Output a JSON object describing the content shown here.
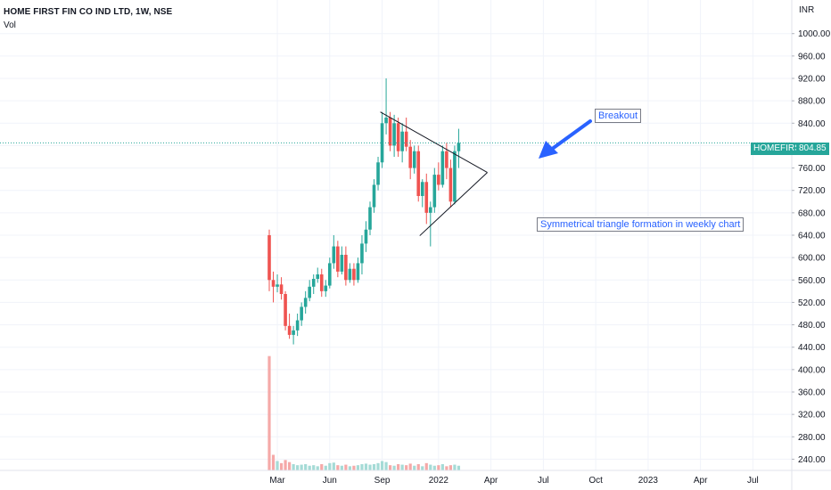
{
  "legend": {
    "symbol": "HOME FIRST FIN CO IND LTD, 1W, NSE",
    "volume": "Vol"
  },
  "currency": "INR",
  "last_price": {
    "symbol": "HOMEFIRST",
    "value": "804.85",
    "value_num": 804.85
  },
  "annotations": {
    "breakout": "Breakout",
    "triangle": "Symmetrical triangle formation in weekly chart"
  },
  "colors": {
    "up": "#26a69a",
    "down": "#ef5350",
    "up_vol": "#a5dbd6",
    "down_vol": "#f5a9a8",
    "line": "#131722",
    "arrow": "#2962ff",
    "grid": "#f0f3fa",
    "axis_text": "#131722"
  },
  "chart_data": {
    "type": "candlestick",
    "title": "HOME FIRST FIN CO IND LTD, 1W, NSE",
    "ylim": [
      220,
      1060
    ],
    "y_ticks": [
      240,
      280,
      320,
      360,
      400,
      440,
      480,
      520,
      560,
      600,
      640,
      680,
      720,
      760,
      800,
      840,
      880,
      920,
      960,
      1000
    ],
    "y_tick_labels": [
      "240.00",
      "280.00",
      "320.00",
      "360.00",
      "400.00",
      "440.00",
      "480.00",
      "520.00",
      "560.00",
      "600.00",
      "640.00",
      "680.00",
      "720.00",
      "760.00",
      "800.00",
      "840.00",
      "880.00",
      "920.00",
      "960.00",
      "1000.00"
    ],
    "x_ticks": [
      "Mar",
      "Jun",
      "Sep",
      "2022",
      "Apr",
      "Jul",
      "Oct",
      "2023",
      "Apr",
      "Jul"
    ],
    "x_tick_weeks": [
      2,
      15,
      28,
      42,
      55,
      68,
      81,
      94,
      107,
      120
    ],
    "candles": [
      [
        640,
        650,
        540,
        560
      ],
      [
        560,
        575,
        520,
        548
      ],
      [
        548,
        570,
        538,
        552
      ],
      [
        552,
        565,
        525,
        535
      ],
      [
        535,
        540,
        470,
        478
      ],
      [
        478,
        500,
        455,
        462
      ],
      [
        462,
        478,
        445,
        470
      ],
      [
        470,
        500,
        460,
        488
      ],
      [
        488,
        520,
        478,
        512
      ],
      [
        512,
        540,
        500,
        528
      ],
      [
        528,
        560,
        522,
        548
      ],
      [
        548,
        570,
        535,
        562
      ],
      [
        562,
        582,
        555,
        570
      ],
      [
        570,
        580,
        530,
        540
      ],
      [
        540,
        560,
        530,
        550
      ],
      [
        550,
        600,
        545,
        590
      ],
      [
        590,
        640,
        580,
        620
      ],
      [
        620,
        630,
        565,
        575
      ],
      [
        575,
        620,
        570,
        605
      ],
      [
        605,
        620,
        550,
        560
      ],
      [
        560,
        590,
        555,
        580
      ],
      [
        580,
        590,
        550,
        560
      ],
      [
        560,
        600,
        555,
        590
      ],
      [
        590,
        640,
        570,
        625
      ],
      [
        625,
        665,
        610,
        650
      ],
      [
        650,
        700,
        640,
        690
      ],
      [
        690,
        740,
        680,
        730
      ],
      [
        730,
        780,
        720,
        770
      ],
      [
        770,
        860,
        760,
        840
      ],
      [
        840,
        920,
        820,
        850
      ],
      [
        850,
        860,
        790,
        800
      ],
      [
        800,
        855,
        780,
        840
      ],
      [
        840,
        850,
        780,
        790
      ],
      [
        790,
        840,
        770,
        825
      ],
      [
        825,
        850,
        790,
        798
      ],
      [
        798,
        810,
        740,
        760
      ],
      [
        760,
        800,
        750,
        790
      ],
      [
        790,
        800,
        700,
        710
      ],
      [
        710,
        740,
        690,
        735
      ],
      [
        735,
        750,
        660,
        680
      ],
      [
        680,
        700,
        620,
        690
      ],
      [
        690,
        760,
        680,
        748
      ],
      [
        748,
        770,
        720,
        730
      ],
      [
        730,
        800,
        725,
        790
      ],
      [
        790,
        805,
        740,
        760
      ],
      [
        760,
        775,
        690,
        700
      ],
      [
        700,
        800,
        695,
        790
      ],
      [
        790,
        830,
        760,
        804.85
      ]
    ],
    "volumes": [
      220000,
      30000,
      18000,
      14000,
      20000,
      16000,
      12000,
      10000,
      11000,
      12000,
      9000,
      10000,
      8000,
      12000,
      9000,
      14000,
      15000,
      10000,
      9000,
      11000,
      8000,
      9000,
      10000,
      12000,
      13000,
      11000,
      12000,
      14000,
      18000,
      16000,
      10000,
      9000,
      12000,
      11000,
      10000,
      13000,
      9000,
      12000,
      8000,
      14000,
      11000,
      9000,
      10000,
      12000,
      8000,
      10000,
      11000,
      9000
    ],
    "volume_ylim": [
      0,
      240000
    ],
    "patterns": [
      {
        "type": "symmetrical triangle",
        "upper": [
          [
            28,
            860
          ],
          [
            47,
            790
          ]
        ],
        "lower": [
          [
            38,
            655
          ],
          [
            47,
            700
          ]
        ],
        "apex": [
          53,
          752
        ]
      }
    ]
  }
}
